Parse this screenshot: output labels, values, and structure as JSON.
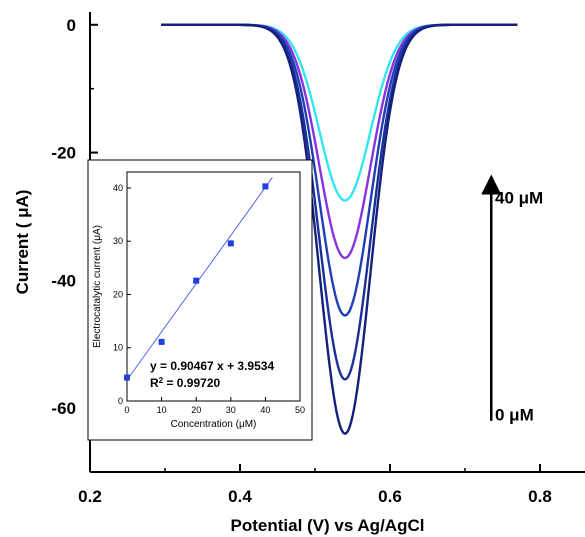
{
  "chart_data": [
    {
      "type": "line",
      "xlabel": "Potential (V) vs Ag/AgCl",
      "ylabel": "Current ( μA)",
      "xlim": [
        0.2,
        0.86
      ],
      "ylim": [
        -70,
        2
      ],
      "xticks": [
        0.2,
        0.4,
        0.6,
        0.8
      ],
      "xtick_labels": [
        "0.2",
        "0.4",
        "0.6",
        "0.8"
      ],
      "yticks": [
        0,
        -20,
        -40,
        -60
      ],
      "ytick_labels": [
        "0",
        "-20",
        "-40",
        "-60"
      ],
      "grid": false,
      "legend": "none",
      "peak_potential": 0.54,
      "peak_width": 0.034,
      "x_range": [
        0.295,
        0.77
      ],
      "series": [
        {
          "peak": -27.5,
          "color": "#33e6ee"
        },
        {
          "peak": -36.5,
          "color": "#8833e0"
        },
        {
          "peak": -45.5,
          "color": "#1f3fb8"
        },
        {
          "peak": -55.5,
          "color": "#1a2f9a"
        },
        {
          "peak": -64.0,
          "color": "#14207a"
        }
      ],
      "annotations": [
        {
          "text": "40 μM",
          "x": 0.74,
          "y": -27
        },
        {
          "text": "0 μM",
          "x": 0.74,
          "y": -61
        }
      ],
      "arrow": {
        "x": 0.735,
        "y_from": -62,
        "y_to": -25
      }
    },
    {
      "type": "scatter",
      "xlabel": "Concentration (μM)",
      "ylabel": "Electrocatalytic current (μA)",
      "xlim": [
        0,
        50
      ],
      "ylim": [
        0,
        43
      ],
      "xticks": [
        0,
        10,
        20,
        30,
        40,
        50
      ],
      "xtick_labels": [
        "0",
        "10",
        "20",
        "30",
        "40",
        "50"
      ],
      "yticks": [
        0,
        10,
        20,
        30,
        40
      ],
      "ytick_labels": [
        "0",
        "10",
        "20",
        "30",
        "40"
      ],
      "x": [
        0,
        10,
        20,
        30,
        40
      ],
      "y": [
        4.4,
        11.1,
        22.6,
        29.6,
        40.3
      ],
      "marker_color": "#1f3fe0",
      "fit": {
        "slope": 0.90467,
        "intercept": 3.9534,
        "x_range": [
          0,
          42
        ],
        "color": "#5566ee"
      },
      "equation": "y = 0.90467 x + 3.9534",
      "r2_label": "R",
      "r2_exp": "2",
      "r2_value": " = 0.99720"
    }
  ]
}
